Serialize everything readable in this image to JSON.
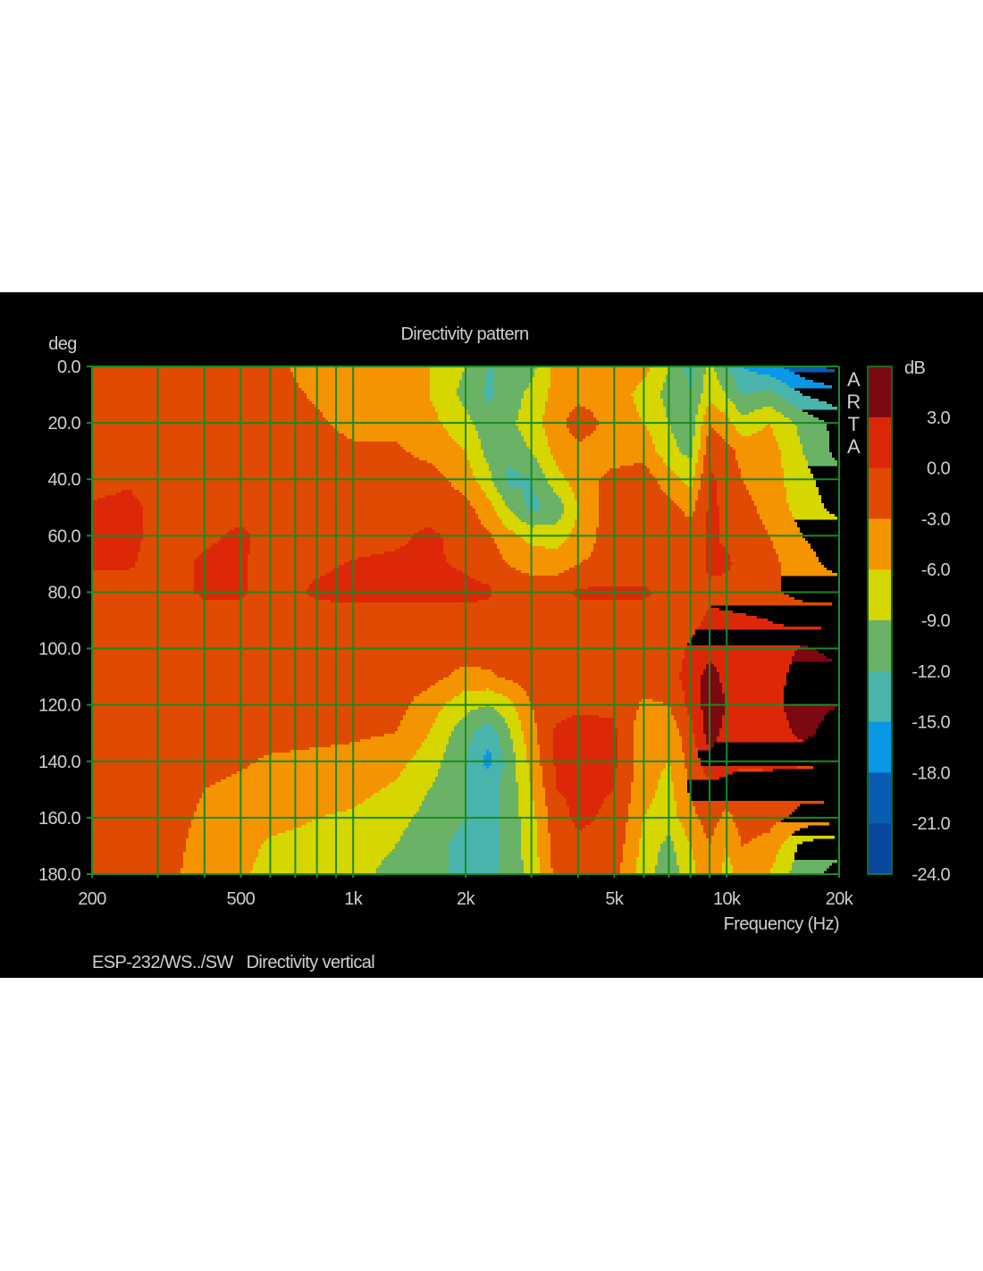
{
  "chart_data": {
    "type": "heatmap",
    "title": "Directivity pattern",
    "xlabel": "Frequency (Hz)",
    "ylabel": "deg",
    "colorbar_label": "dB",
    "footer": "ESP-232/WS../SW   Directivity vertical",
    "watermark": "ARTA",
    "x_scale": "log",
    "xlim": [
      200,
      20000
    ],
    "ylim": [
      0,
      180
    ],
    "grid": true,
    "x_ticks": [
      {
        "value": 200,
        "label": "200"
      },
      {
        "value": 500,
        "label": "500"
      },
      {
        "value": 1000,
        "label": "1k"
      },
      {
        "value": 2000,
        "label": "2k"
      },
      {
        "value": 5000,
        "label": "5k"
      },
      {
        "value": 10000,
        "label": "10k"
      },
      {
        "value": 20000,
        "label": "20k"
      }
    ],
    "y_ticks": [
      {
        "value": 0,
        "label": "0.0"
      },
      {
        "value": 20,
        "label": "20.0"
      },
      {
        "value": 40,
        "label": "40.0"
      },
      {
        "value": 60,
        "label": "60.0"
      },
      {
        "value": 80,
        "label": "80.0"
      },
      {
        "value": 100,
        "label": "100.0"
      },
      {
        "value": 120,
        "label": "120.0"
      },
      {
        "value": 140,
        "label": "140.0"
      },
      {
        "value": 160,
        "label": "160.0"
      },
      {
        "value": 180,
        "label": "180.0"
      }
    ],
    "colorbar_ticks": [
      {
        "value": 3,
        "label": "3.0"
      },
      {
        "value": 0,
        "label": "0.0"
      },
      {
        "value": -3,
        "label": "-3.0"
      },
      {
        "value": -6,
        "label": "-6.0"
      },
      {
        "value": -9,
        "label": "-9.0"
      },
      {
        "value": -12,
        "label": "-12.0"
      },
      {
        "value": -15,
        "label": "-15.0"
      },
      {
        "value": -18,
        "label": "-18.0"
      },
      {
        "value": -21,
        "label": "-21.0"
      },
      {
        "value": -24,
        "label": "-24.0"
      }
    ],
    "levels": [
      {
        "min": 3,
        "max": 6,
        "color": "#7c0812"
      },
      {
        "min": 0,
        "max": 3,
        "color": "#dc2808"
      },
      {
        "min": -3,
        "max": 0,
        "color": "#e04a02"
      },
      {
        "min": -6,
        "max": -3,
        "color": "#f49400"
      },
      {
        "min": -9,
        "max": -6,
        "color": "#d6d600"
      },
      {
        "min": -12,
        "max": -9,
        "color": "#6ab266"
      },
      {
        "min": -15,
        "max": -12,
        "color": "#48b4ac"
      },
      {
        "min": -18,
        "max": -15,
        "color": "#0898e6"
      },
      {
        "min": -21,
        "max": -18,
        "color": "#0a5cb2"
      },
      {
        "min": -24,
        "max": -21,
        "color": "#0a48a0"
      }
    ],
    "grid_color": "#1a8a22",
    "x": [
      200,
      250,
      300,
      400,
      500,
      600,
      800,
      1000,
      1300,
      1600,
      2000,
      2300,
      2600,
      3000,
      3500,
      4000,
      5000,
      6000,
      7000,
      8000,
      9000,
      10000,
      11000,
      13000,
      16000,
      20000
    ],
    "y": [
      0,
      10,
      20,
      30,
      40,
      50,
      60,
      70,
      80,
      90,
      100,
      110,
      120,
      130,
      140,
      150,
      160,
      170,
      180
    ],
    "z": [
      [
        -1.5,
        -1.5,
        -1.5,
        -1.5,
        -1.5,
        -2,
        -4.5,
        -4.5,
        -4.5,
        -6,
        -9,
        -12,
        -12,
        -10,
        -5,
        -4.5,
        -4.5,
        -5,
        -9,
        -13,
        -8,
        -12,
        -15,
        -17,
        -20,
        -22
      ],
      [
        -1.5,
        -1.5,
        -1.5,
        -1.5,
        -1.5,
        -1.5,
        -3.5,
        -4.5,
        -4.5,
        -6,
        -10,
        -12.5,
        -11,
        -8,
        -5,
        -4,
        -4.5,
        -7,
        -10,
        -12,
        -7,
        -9,
        -12,
        -11,
        -15,
        -17
      ],
      [
        -1.5,
        -1.5,
        -1.5,
        -1.5,
        -1.5,
        -1.5,
        -2.5,
        -4,
        -4,
        -5,
        -8,
        -11,
        -10,
        -7,
        -4.5,
        -1,
        -4.5,
        -6,
        -9,
        -11,
        -3,
        -5,
        -8,
        -6,
        -10,
        -13
      ],
      [
        -1.5,
        -1.5,
        -1.5,
        -1.5,
        -1.5,
        -1.5,
        -1.5,
        -2.5,
        -2.5,
        -4,
        -6,
        -10,
        -11,
        -9,
        -5,
        -4,
        -4.5,
        -4,
        -8,
        -10,
        -1,
        -2,
        -4,
        -4.5,
        -9,
        -13
      ],
      [
        -1.5,
        -0.5,
        -1.5,
        -1.5,
        -1.5,
        -1.5,
        -1.5,
        -1.5,
        -1.5,
        -1.5,
        -4.5,
        -8,
        -13,
        -12,
        -7,
        -4.5,
        -2,
        -1.5,
        -4.5,
        -7,
        0.5,
        -1,
        -3,
        -4.5,
        -8,
        -11
      ],
      [
        0.5,
        1,
        -1,
        -1.5,
        -1,
        -1.5,
        -1.5,
        -1.5,
        -1.5,
        -1,
        -2,
        -5,
        -9,
        -13,
        -11,
        -6,
        -1,
        -1,
        -2,
        -4,
        0.5,
        -0.5,
        -2,
        -4,
        -7.5,
        -10
      ],
      [
        1,
        1,
        -1,
        -0.5,
        0.5,
        -1,
        -1.5,
        -1,
        -0.5,
        0.5,
        -1,
        -2.5,
        -5,
        -7,
        -7.5,
        -5,
        -1,
        -1.5,
        -1.5,
        -1.5,
        0.5,
        -0.5,
        -1,
        -3,
        -6,
        -7.5
      ],
      [
        0.5,
        0.5,
        -1.5,
        0.5,
        0.5,
        -1.5,
        -0.5,
        0.2,
        0.5,
        0.5,
        -0.5,
        -1.5,
        -3,
        -4,
        -4.5,
        -3,
        -2,
        -1.5,
        -1.5,
        -1.5,
        0.5,
        0.5,
        -1,
        -2,
        -5,
        -7
      ],
      [
        -1.5,
        -1.5,
        -1.5,
        0.5,
        0.5,
        -1.5,
        0.5,
        1,
        1,
        1,
        1,
        0.5,
        -1.5,
        -1.5,
        -1,
        0.5,
        0.5,
        0.5,
        -1,
        -1.5,
        -0.5,
        -1,
        -1.5,
        -2.5,
        -4,
        -4.5
      ],
      [
        -1.5,
        -1.5,
        -1.5,
        -1.5,
        -1.5,
        -1.5,
        -1.5,
        -1.5,
        -1.5,
        -1.5,
        -1.5,
        -1.5,
        -1.5,
        -1.5,
        -1.5,
        -1.5,
        -1.5,
        -1.5,
        -1.5,
        -1,
        0.5,
        0.5,
        0.5,
        0,
        -1,
        -1
      ],
      [
        -1.5,
        -1.5,
        -1.5,
        -1.5,
        -1.5,
        -1.5,
        -1.5,
        -1.5,
        -1.5,
        -1.5,
        -1.5,
        -1.5,
        -1.5,
        -1.5,
        -1.5,
        -1.5,
        -1.5,
        -1.5,
        -1.5,
        0.5,
        2,
        1,
        1,
        1,
        3.5,
        2
      ],
      [
        -1.5,
        -1.5,
        -1.5,
        -1.5,
        -1.5,
        -1.5,
        -1.5,
        -1.5,
        -1.5,
        -2,
        -4,
        -3.5,
        -2.5,
        -1.5,
        -3,
        -1.5,
        -1.5,
        -1.5,
        -1,
        1,
        4.5,
        2,
        1.5,
        1.5,
        4.5,
        4
      ],
      [
        -1.5,
        -1.5,
        -1.5,
        -1.5,
        -1.5,
        -1.5,
        -1.5,
        -1.5,
        -2,
        -4.5,
        -8,
        -9,
        -7,
        -3,
        -1,
        -0.5,
        -0.5,
        -3.5,
        -3,
        1,
        4.5,
        3,
        1.5,
        2,
        4.5,
        3
      ],
      [
        -1.5,
        -1.5,
        -1.5,
        -1.5,
        -1.5,
        -1.5,
        -2,
        -2.5,
        -3,
        -6,
        -11,
        -14,
        -9.5,
        -4,
        0.5,
        1,
        0.5,
        -5,
        -5,
        -1,
        4.5,
        2,
        1,
        1,
        4,
        1
      ],
      [
        -1.5,
        -1.5,
        -1.5,
        -1.5,
        -2.5,
        -3.5,
        -4,
        -4,
        -5,
        -7.5,
        -12,
        -16,
        -11,
        -5,
        0.5,
        0.8,
        0.5,
        -5,
        -6,
        -2,
        2,
        1,
        0.5,
        0.5,
        0.5,
        0.5
      ],
      [
        -1.5,
        -1.5,
        -1.5,
        -3,
        -4,
        -4.5,
        -4.5,
        -5,
        -6.5,
        -9,
        -12,
        -13,
        -11,
        -6,
        0,
        0.5,
        0,
        -5,
        -7,
        -2.5,
        -1,
        -1,
        -1.5,
        -1,
        -2,
        -1.5
      ],
      [
        -1.5,
        -1.5,
        -1.5,
        -3.5,
        -4.5,
        -5,
        -6,
        -6.5,
        -8,
        -10,
        -12,
        -13,
        -11,
        -7,
        -1,
        0.5,
        -0.5,
        -6,
        -7.5,
        -4,
        -1.5,
        -4,
        -1.5,
        -2,
        -4,
        -5
      ],
      [
        -1.5,
        -1.5,
        -1.5,
        -4,
        -5,
        -6.5,
        -7,
        -7.5,
        -9,
        -11,
        -13,
        -13,
        -11,
        -7.5,
        -1.5,
        -0.5,
        -1,
        -7,
        -10,
        -6,
        -3,
        -6,
        -3,
        -4,
        -10,
        -11
      ],
      [
        -1.5,
        -1.5,
        -1.5,
        -4.5,
        -5.5,
        -7,
        -7.5,
        -8,
        -10,
        -11,
        -13,
        -13,
        -11,
        -8,
        -2,
        -1.5,
        -2,
        -7.5,
        -11,
        -7,
        -4,
        -7,
        -5,
        -6,
        -11,
        -13
      ]
    ]
  }
}
